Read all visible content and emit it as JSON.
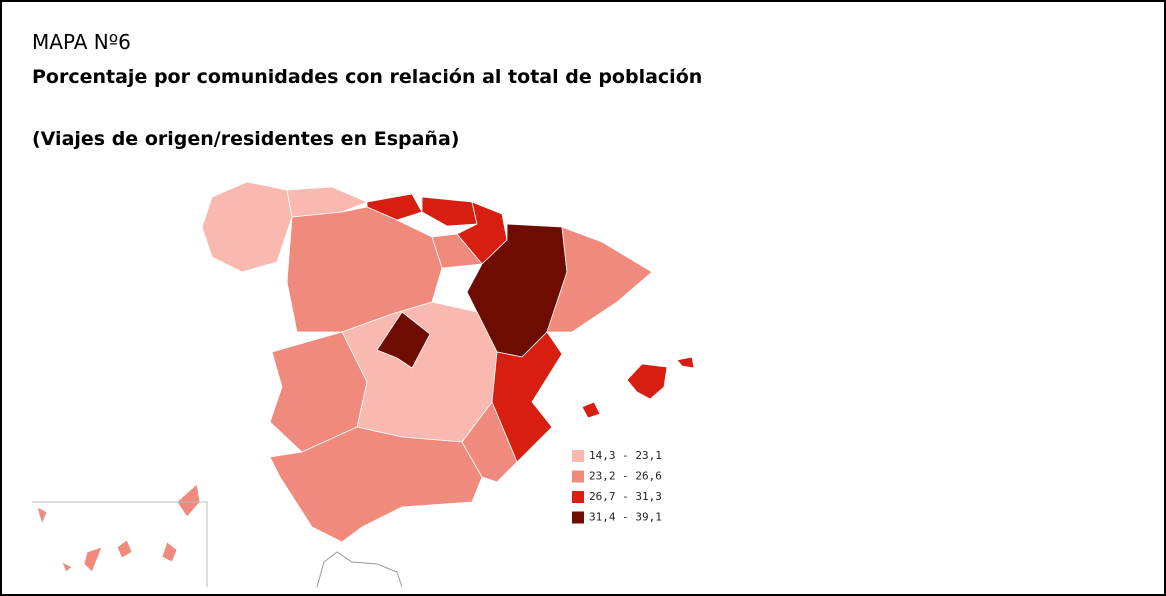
{
  "header": {
    "label": "MAPA Nº6",
    "title": "Porcentaje por comunidades con relación al total de población",
    "subtitle": "(Viajes de origen/residentes en España)"
  },
  "legend": {
    "items": [
      {
        "label": "14,3 - 23,1",
        "color": "#f9b8b0"
      },
      {
        "label": "23,2 - 26,6",
        "color": "#f08a7c"
      },
      {
        "label": "26,7 - 31,3",
        "color": "#d81e10"
      },
      {
        "label": "31,4 - 39,1",
        "color": "#6e0c02"
      }
    ]
  }
}
